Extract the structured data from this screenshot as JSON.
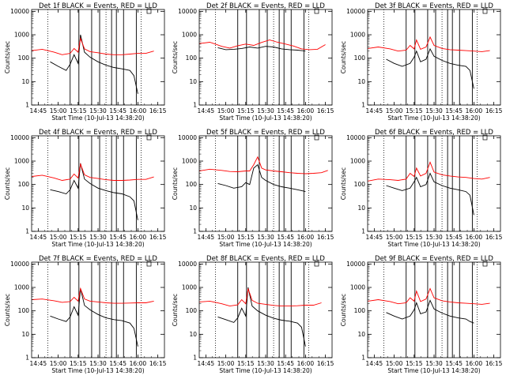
{
  "figure": {
    "background": "#ffffff"
  },
  "colors": {
    "events": "#000000",
    "lld": "#ff0000",
    "axes": "#000000"
  },
  "panel_common": {
    "xlabel": "Start Time (10-Jul-13 14:38:20)",
    "ylabel": "Counts/sec",
    "x_tick_labels": [
      "14:45",
      "15:00",
      "15:15",
      "15:30",
      "15:45",
      "16:00",
      "16:15"
    ],
    "x_tick_hours": [
      14.75,
      15.0,
      15.25,
      15.5,
      15.75,
      16.0,
      16.25
    ],
    "y_tick_labels": [
      "1",
      "10",
      "100",
      "1000",
      "10000"
    ],
    "y_tick_values": [
      1,
      10,
      100,
      1000,
      10000
    ],
    "xlim_hours": [
      14.667,
      16.333
    ],
    "ylim": [
      1,
      12000
    ],
    "yscale": "log",
    "vertical_lines_dotted_hours": [
      14.87,
      15.6,
      16.04
    ],
    "vertical_lines_solid_hours": [
      15.15,
      15.26,
      15.42,
      15.52,
      15.67,
      15.73,
      15.82,
      15.98
    ]
  },
  "chart_data": [
    {
      "type": "line",
      "panel": "det1",
      "title": "Det 1f BLACK = Events, RED = LLD",
      "series": [
        {
          "name": "Events",
          "color": "#000000",
          "x": [
            14.9,
            15.0,
            15.1,
            15.15,
            15.2,
            15.25,
            15.28,
            15.33,
            15.4,
            15.5,
            15.6,
            15.7,
            15.8,
            15.9,
            15.95,
            16.0
          ],
          "y": [
            70,
            45,
            30,
            55,
            140,
            60,
            1000,
            180,
            110,
            70,
            50,
            40,
            35,
            30,
            18,
            3
          ]
        },
        {
          "name": "LLD",
          "color": "#ff0000",
          "x": [
            14.67,
            14.8,
            14.95,
            15.05,
            15.15,
            15.2,
            15.25,
            15.28,
            15.33,
            15.4,
            15.5,
            15.6,
            15.7,
            15.8,
            15.9,
            16.0,
            16.1,
            16.2
          ],
          "y": [
            210,
            240,
            180,
            140,
            160,
            260,
            180,
            700,
            250,
            190,
            170,
            150,
            140,
            140,
            150,
            160,
            160,
            200
          ]
        }
      ]
    },
    {
      "type": "line",
      "panel": "det2",
      "title": "Det 2f BLACK = Events, RED = LLD",
      "series": [
        {
          "name": "Events",
          "color": "#000000",
          "x": [
            14.9,
            15.0,
            15.1,
            15.2,
            15.3,
            15.4,
            15.5,
            15.6,
            15.7,
            15.8,
            15.9,
            15.95,
            16.0
          ],
          "y": [
            280,
            230,
            240,
            260,
            300,
            270,
            320,
            300,
            250,
            230,
            220,
            210,
            200
          ]
        },
        {
          "name": "LLD",
          "color": "#ff0000",
          "x": [
            14.67,
            14.8,
            14.95,
            15.05,
            15.15,
            15.25,
            15.35,
            15.45,
            15.55,
            15.65,
            15.75,
            15.85,
            15.95,
            16.05,
            16.15,
            16.25
          ],
          "y": [
            420,
            480,
            320,
            270,
            340,
            400,
            350,
            470,
            600,
            480,
            400,
            330,
            250,
            230,
            240,
            380
          ]
        }
      ]
    },
    {
      "type": "line",
      "panel": "det3",
      "title": "Det 3f BLACK = Events, RED = LLD",
      "series": [
        {
          "name": "Events",
          "color": "#000000",
          "x": [
            14.9,
            15.0,
            15.1,
            15.2,
            15.25,
            15.28,
            15.33,
            15.4,
            15.45,
            15.5,
            15.6,
            15.7,
            15.8,
            15.9,
            15.95,
            16.0
          ],
          "y": [
            90,
            60,
            45,
            60,
            110,
            200,
            70,
            90,
            250,
            120,
            80,
            60,
            50,
            45,
            30,
            5
          ]
        },
        {
          "name": "LLD",
          "color": "#ff0000",
          "x": [
            14.67,
            14.8,
            14.95,
            15.05,
            15.15,
            15.2,
            15.25,
            15.28,
            15.33,
            15.4,
            15.45,
            15.5,
            15.6,
            15.7,
            15.8,
            15.9,
            16.0,
            16.1,
            16.2
          ],
          "y": [
            260,
            300,
            250,
            200,
            220,
            350,
            250,
            600,
            240,
            300,
            800,
            350,
            260,
            230,
            220,
            210,
            200,
            190,
            210
          ]
        }
      ]
    },
    {
      "type": "line",
      "panel": "det4",
      "title": "Det 4f BLACK = Events, RED = LLD",
      "series": [
        {
          "name": "Events",
          "color": "#000000",
          "x": [
            14.9,
            15.0,
            15.1,
            15.15,
            15.2,
            15.25,
            15.28,
            15.33,
            15.4,
            15.5,
            15.6,
            15.7,
            15.8,
            15.9,
            15.95,
            16.0
          ],
          "y": [
            60,
            50,
            40,
            60,
            150,
            70,
            800,
            170,
            110,
            70,
            55,
            45,
            40,
            30,
            20,
            3
          ]
        },
        {
          "name": "LLD",
          "color": "#ff0000",
          "x": [
            14.67,
            14.8,
            14.95,
            15.05,
            15.15,
            15.2,
            15.25,
            15.28,
            15.33,
            15.4,
            15.5,
            15.6,
            15.7,
            15.8,
            15.9,
            16.0,
            16.1,
            16.2
          ],
          "y": [
            220,
            250,
            190,
            150,
            170,
            280,
            190,
            750,
            260,
            200,
            180,
            160,
            150,
            150,
            155,
            165,
            165,
            210
          ]
        }
      ]
    },
    {
      "type": "line",
      "panel": "det5",
      "title": "Det 5f BLACK = Events, RED = LLD",
      "series": [
        {
          "name": "Events",
          "color": "#000000",
          "x": [
            14.9,
            15.0,
            15.1,
            15.2,
            15.25,
            15.3,
            15.35,
            15.4,
            15.45,
            15.5,
            15.6,
            15.7,
            15.8,
            15.9,
            15.95,
            16.0
          ],
          "y": [
            110,
            90,
            70,
            80,
            120,
            100,
            500,
            700,
            200,
            150,
            100,
            80,
            70,
            60,
            55,
            50
          ]
        },
        {
          "name": "LLD",
          "color": "#ff0000",
          "x": [
            14.67,
            14.8,
            14.95,
            15.05,
            15.15,
            15.25,
            15.3,
            15.35,
            15.4,
            15.45,
            15.5,
            15.6,
            15.7,
            15.8,
            15.9,
            16.0,
            16.1,
            16.2,
            16.28
          ],
          "y": [
            380,
            450,
            400,
            360,
            350,
            380,
            380,
            700,
            1500,
            500,
            420,
            380,
            350,
            320,
            300,
            290,
            300,
            320,
            400
          ]
        }
      ]
    },
    {
      "type": "line",
      "panel": "det6",
      "title": "Det 6f BLACK = Events, RED = LLD",
      "series": [
        {
          "name": "Events",
          "color": "#000000",
          "x": [
            14.9,
            15.0,
            15.1,
            15.2,
            15.25,
            15.28,
            15.33,
            15.4,
            15.45,
            15.5,
            15.6,
            15.7,
            15.8,
            15.9,
            15.95,
            16.0
          ],
          "y": [
            90,
            70,
            55,
            70,
            130,
            200,
            80,
            100,
            300,
            130,
            90,
            70,
            60,
            50,
            35,
            5
          ]
        },
        {
          "name": "LLD",
          "color": "#ff0000",
          "x": [
            14.67,
            14.8,
            14.95,
            15.05,
            15.15,
            15.2,
            15.25,
            15.28,
            15.33,
            15.4,
            15.45,
            15.5,
            15.6,
            15.7,
            15.8,
            15.9,
            16.0,
            16.1,
            16.2
          ],
          "y": [
            140,
            170,
            160,
            150,
            170,
            300,
            220,
            500,
            230,
            300,
            900,
            340,
            260,
            230,
            210,
            200,
            180,
            170,
            200
          ]
        }
      ]
    },
    {
      "type": "line",
      "panel": "det7",
      "title": "Det 7f BLACK = Events, RED = LLD",
      "series": [
        {
          "name": "Events",
          "color": "#000000",
          "x": [
            14.9,
            15.0,
            15.1,
            15.15,
            15.2,
            15.25,
            15.28,
            15.33,
            15.4,
            15.5,
            15.6,
            15.7,
            15.8,
            15.9,
            15.95,
            16.0
          ],
          "y": [
            60,
            45,
            35,
            55,
            150,
            65,
            900,
            170,
            110,
            70,
            50,
            42,
            38,
            30,
            18,
            3
          ]
        },
        {
          "name": "LLD",
          "color": "#ff0000",
          "x": [
            14.67,
            14.8,
            14.95,
            15.05,
            15.15,
            15.2,
            15.25,
            15.28,
            15.33,
            15.4,
            15.5,
            15.6,
            15.7,
            15.8,
            15.9,
            16.0,
            16.1,
            16.2
          ],
          "y": [
            300,
            320,
            270,
            230,
            250,
            380,
            260,
            900,
            320,
            260,
            240,
            220,
            210,
            210,
            215,
            220,
            220,
            260
          ]
        }
      ]
    },
    {
      "type": "line",
      "panel": "det8",
      "title": "Det 8f BLACK = Events, RED = LLD",
      "series": [
        {
          "name": "Events",
          "color": "#000000",
          "x": [
            14.9,
            15.0,
            15.1,
            15.15,
            15.2,
            15.25,
            15.28,
            15.33,
            15.4,
            15.5,
            15.6,
            15.7,
            15.8,
            15.9,
            15.95,
            16.0
          ],
          "y": [
            55,
            42,
            32,
            50,
            130,
            60,
            1000,
            160,
            100,
            65,
            48,
            40,
            36,
            30,
            20,
            3
          ]
        },
        {
          "name": "LLD",
          "color": "#ff0000",
          "x": [
            14.67,
            14.8,
            14.95,
            15.05,
            15.15,
            15.2,
            15.25,
            15.28,
            15.33,
            15.4,
            15.5,
            15.6,
            15.7,
            15.8,
            15.9,
            16.0,
            16.1,
            16.2
          ],
          "y": [
            240,
            260,
            200,
            160,
            180,
            300,
            200,
            900,
            280,
            210,
            190,
            170,
            160,
            160,
            165,
            175,
            175,
            220
          ]
        }
      ]
    },
    {
      "type": "line",
      "panel": "det9",
      "title": "Det 9f BLACK = Events, RED = LLD",
      "series": [
        {
          "name": "Events",
          "color": "#000000",
          "x": [
            14.9,
            15.0,
            15.1,
            15.2,
            15.25,
            15.28,
            15.33,
            15.4,
            15.45,
            15.5,
            15.6,
            15.7,
            15.8,
            15.9,
            15.95,
            16.0
          ],
          "y": [
            85,
            60,
            45,
            60,
            110,
            220,
            75,
            90,
            280,
            120,
            80,
            60,
            50,
            45,
            35,
            30
          ]
        },
        {
          "name": "LLD",
          "color": "#ff0000",
          "x": [
            14.67,
            14.8,
            14.95,
            15.05,
            15.15,
            15.2,
            15.25,
            15.28,
            15.33,
            15.4,
            15.45,
            15.5,
            15.6,
            15.7,
            15.8,
            15.9,
            16.0,
            16.1,
            16.2
          ],
          "y": [
            260,
            300,
            250,
            200,
            220,
            360,
            260,
            700,
            250,
            320,
            900,
            360,
            270,
            240,
            220,
            210,
            200,
            190,
            210
          ]
        }
      ]
    }
  ]
}
